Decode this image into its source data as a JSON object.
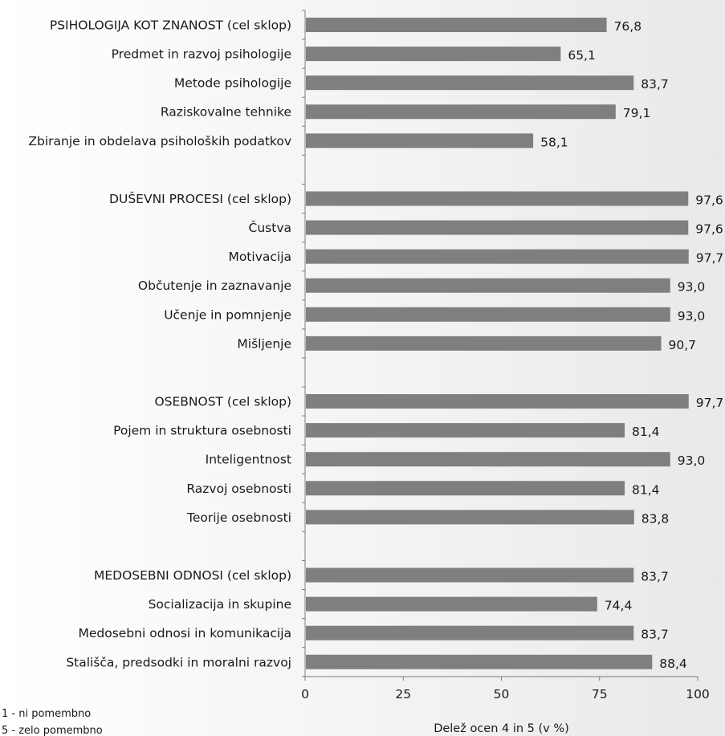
{
  "chart_data": {
    "type": "bar",
    "orientation": "horizontal",
    "categories": [
      "PSIHOLOGIJA KOT ZNANOST (cel sklop)",
      "Predmet in razvoj psihologije",
      "Metode psihologije",
      "Raziskovalne tehnike",
      "Zbiranje in obdelava psiholoških podatkov",
      "",
      "DUŠEVNI PROCESI (cel sklop)",
      "Čustva",
      "Motivacija",
      "Občutenje in zaznavanje",
      "Učenje in pomnjenje",
      "Mišljenje",
      "",
      "OSEBNOST (cel sklop)",
      "Pojem in struktura osebnosti",
      "Inteligentnost",
      "Razvoj osebnosti",
      "Teorije osebnosti",
      "",
      "MEDOSEBNI ODNOSI (cel sklop)",
      "Socializacija in skupine",
      "Medosebni odnosi in komunikacija",
      "Stališča, predsodki in moralni razvoj"
    ],
    "values": [
      76.8,
      65.1,
      83.7,
      79.1,
      58.1,
      null,
      97.6,
      97.6,
      97.7,
      93.0,
      93.0,
      90.7,
      null,
      97.7,
      81.4,
      93.0,
      81.4,
      83.8,
      null,
      83.7,
      74.4,
      83.7,
      88.4
    ],
    "value_labels": [
      "76,8",
      "65,1",
      "83,7",
      "79,1",
      "58,1",
      "",
      "97,6",
      "97,6",
      "97,7",
      "93,0",
      "93,0",
      "90,7",
      "",
      "97,7",
      "81,4",
      "93,0",
      "81,4",
      "83,8",
      "",
      "83,7",
      "74,4",
      "83,7",
      "88,4"
    ],
    "xlim": [
      0,
      100
    ],
    "xticks": [
      "0",
      "25",
      "50",
      "75",
      "100"
    ],
    "xtick_values": [
      0,
      25,
      50,
      75,
      100
    ],
    "xlabel": "Delež ocen 4 in 5 (v %)",
    "grid": false,
    "bar_color": "#7f7f7f"
  },
  "notes": [
    "1 - ni pomembno",
    "5 - zelo pomembno"
  ]
}
